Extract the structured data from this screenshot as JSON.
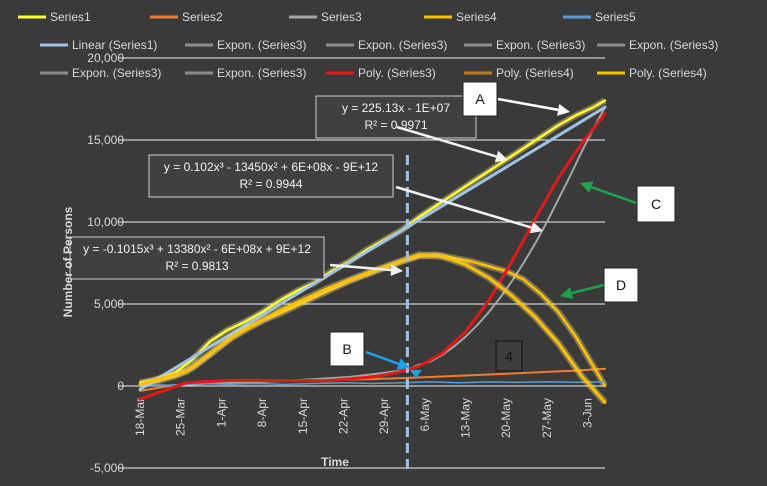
{
  "chart_data": {
    "type": "line",
    "xlabel": "Time",
    "ylabel": "Number of Persons",
    "ylim": [
      -5000,
      20000
    ],
    "yticks": [
      -5000,
      0,
      5000,
      10000,
      15000,
      20000
    ],
    "ytick_labels": [
      "-5,000",
      "0",
      "5,000",
      "10,000",
      "15,000",
      "20,000"
    ],
    "xticks": [
      {
        "day": 0,
        "label": "18-Mar"
      },
      {
        "day": 7,
        "label": "25-Mar"
      },
      {
        "day": 14,
        "label": "1-Apr"
      },
      {
        "day": 21,
        "label": "8-Apr"
      },
      {
        "day": 28,
        "label": "15-Apr"
      },
      {
        "day": 35,
        "label": "22-Apr"
      },
      {
        "day": 42,
        "label": "29-Apr"
      },
      {
        "day": 49,
        "label": "6-May"
      },
      {
        "day": 56,
        "label": "13-May"
      },
      {
        "day": 63,
        "label": "20-May"
      },
      {
        "day": 70,
        "label": "27-May"
      },
      {
        "day": 77,
        "label": "3-Jun"
      }
    ],
    "xlim": [
      0,
      80
    ],
    "legend": [
      {
        "label": "Series1",
        "color": "#ffff33"
      },
      {
        "label": "Series2",
        "color": "#ed7d31"
      },
      {
        "label": "Series3",
        "color": "#a5a5a5"
      },
      {
        "label": "Series4",
        "color": "#ffc000"
      },
      {
        "label": "Series5",
        "color": "#5b9bd5"
      },
      {
        "label": "Linear (Series1)",
        "color": "#9dc3e6"
      },
      {
        "label": "Expon. (Series3)",
        "color": "#8c8c8c"
      },
      {
        "label": "Expon. (Series3)",
        "color": "#8c8c8c"
      },
      {
        "label": "Expon. (Series3)",
        "color": "#8c8c8c"
      },
      {
        "label": "Expon. (Series3)",
        "color": "#8c8c8c"
      },
      {
        "label": "Expon. (Series3)",
        "color": "#8c8c8c"
      },
      {
        "label": "Expon. (Series3)",
        "color": "#8c8c8c"
      },
      {
        "label": "Poly. (Series3)",
        "color": "#e01a1a"
      },
      {
        "label": "Poly. (Series4)",
        "color": "#b87d2a"
      },
      {
        "label": "Poly. (Series4)",
        "color": "#ffc000"
      }
    ],
    "series": [
      {
        "name": "Series1",
        "color": "#ffff33",
        "width": 2.5,
        "x": [
          0,
          3,
          6,
          9,
          12,
          15,
          18,
          21,
          24,
          27,
          30,
          33,
          36,
          39,
          42,
          45,
          48,
          51,
          54,
          57,
          60,
          63,
          66,
          69,
          72,
          75,
          78,
          80
        ],
        "y": [
          200,
          400,
          800,
          1600,
          2700,
          3400,
          3900,
          4500,
          5200,
          5800,
          6300,
          7000,
          7600,
          8300,
          8900,
          9500,
          10300,
          11000,
          11700,
          12400,
          13100,
          13800,
          14500,
          15200,
          15900,
          16500,
          17000,
          17400
        ]
      },
      {
        "name": "Series2",
        "color": "#ed7d31",
        "width": 2,
        "x": [
          0,
          5,
          10,
          15,
          20,
          25,
          30,
          35,
          40,
          45,
          50,
          55,
          60,
          65,
          70,
          75,
          80
        ],
        "y": [
          -300,
          0,
          200,
          250,
          300,
          320,
          350,
          380,
          420,
          480,
          550,
          620,
          700,
          780,
          860,
          940,
          1050
        ]
      },
      {
        "name": "Series3",
        "color": "#a5a5a5",
        "width": 2,
        "x": [
          0,
          6,
          12,
          18,
          24,
          30,
          36,
          42,
          46,
          48,
          50,
          52,
          54,
          56,
          58,
          60,
          62,
          64,
          66,
          68,
          70,
          72,
          74,
          76,
          78,
          80
        ],
        "y": [
          0,
          50,
          150,
          200,
          300,
          420,
          550,
          800,
          1000,
          1300,
          1500,
          1900,
          2400,
          3000,
          3700,
          4500,
          5400,
          6400,
          7500,
          8700,
          10000,
          11400,
          12800,
          14300,
          15700,
          17000
        ]
      },
      {
        "name": "Series4",
        "color": "#ffc000",
        "width": 2.5,
        "x": [
          0,
          3,
          6,
          9,
          12,
          15,
          18,
          21,
          24,
          27,
          30,
          33,
          36,
          39,
          42,
          45,
          48,
          51,
          54,
          57,
          60,
          63,
          66,
          69,
          72,
          75,
          78,
          80
        ],
        "y": [
          100,
          300,
          600,
          1100,
          1900,
          2800,
          3500,
          4000,
          4400,
          4900,
          5400,
          5900,
          6400,
          6800,
          7200,
          7600,
          7900,
          8000,
          7800,
          7600,
          7300,
          7000,
          6500,
          5600,
          4500,
          3000,
          1200,
          0
        ]
      },
      {
        "name": "Series5",
        "color": "#5b9bd5",
        "width": 1.5,
        "x": [
          0,
          5,
          10,
          15,
          20,
          25,
          30,
          35,
          40,
          45,
          50,
          55,
          60,
          65,
          70,
          75,
          80
        ],
        "y": [
          100,
          50,
          150,
          100,
          150,
          100,
          150,
          200,
          150,
          200,
          250,
          200,
          250,
          220,
          260,
          230,
          250
        ]
      },
      {
        "name": "Linear (Series1)",
        "color": "#9dc3e6",
        "width": 3,
        "x": [
          0,
          80
        ],
        "y": [
          -200,
          17000
        ]
      },
      {
        "name": "Poly. (Series3)",
        "color": "#e01a1a",
        "width": 3,
        "x": [
          0,
          8,
          16,
          24,
          32,
          40,
          44,
          48,
          52,
          56,
          60,
          64,
          68,
          72,
          76,
          80
        ],
        "y": [
          -800,
          200,
          350,
          330,
          320,
          550,
          800,
          1200,
          2000,
          3300,
          5200,
          7600,
          10200,
          12700,
          14800,
          16600
        ]
      },
      {
        "name": "Poly. (Series4)",
        "color": "#ffc000",
        "width": 3,
        "x": [
          0,
          8,
          16,
          24,
          32,
          40,
          44,
          48,
          52,
          56,
          60,
          64,
          68,
          72,
          76,
          80
        ],
        "y": [
          100,
          900,
          3000,
          4600,
          5900,
          7000,
          7500,
          8000,
          7900,
          7400,
          6600,
          5500,
          4200,
          2600,
          600,
          -1000
        ]
      }
    ],
    "annotations": [
      {
        "text": "y = 225.13x - 1E+07",
        "text2": "R² = 0.9971"
      },
      {
        "text": "y = 0.102x³ - 13450x² + 6E+08x - 9E+12",
        "text2": "R² = 0.9944"
      },
      {
        "text": "y = -0.1015x³ + 13380x² - 6E+08x + 9E+12",
        "text2": "R² = 0.9813"
      }
    ],
    "callouts": [
      "A",
      "B",
      "C",
      "D",
      "4"
    ],
    "vertical_marker_day": 46
  }
}
